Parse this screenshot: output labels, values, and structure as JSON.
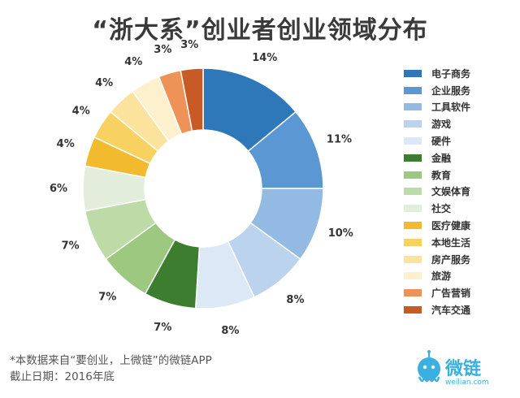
{
  "title": "“浙大系”创业者创业领域分布",
  "chart_data": {
    "type": "pie",
    "donut": true,
    "title": "“浙大系”创业者创业领域分布",
    "legend_position": "right",
    "slices": [
      {
        "label": "电子商务",
        "value": 14,
        "value_label": "14%",
        "color": "#2e78b9"
      },
      {
        "label": "企业服务",
        "value": 11,
        "value_label": "11%",
        "color": "#5a97d3"
      },
      {
        "label": "工具软件",
        "value": 10,
        "value_label": "10%",
        "color": "#93bae3"
      },
      {
        "label": "游戏",
        "value": 8,
        "value_label": "8%",
        "color": "#bcd3ee"
      },
      {
        "label": "硬件",
        "value": 8,
        "value_label": "8%",
        "color": "#dde8f6"
      },
      {
        "label": "金融",
        "value": 7,
        "value_label": "7%",
        "color": "#3c7d2f"
      },
      {
        "label": "教育",
        "value": 7,
        "value_label": "7%",
        "color": "#9cc87f"
      },
      {
        "label": "文娱体育",
        "value": 7,
        "value_label": "7%",
        "color": "#bedaa6"
      },
      {
        "label": "社交",
        "value": 6,
        "value_label": "6%",
        "color": "#e2eedb"
      },
      {
        "label": "医疗健康",
        "value": 4,
        "value_label": "4%",
        "color": "#f2bb2f"
      },
      {
        "label": "本地生活",
        "value": 4,
        "value_label": "4%",
        "color": "#f8d260"
      },
      {
        "label": "房产服务",
        "value": 4,
        "value_label": "4%",
        "color": "#fbe39d"
      },
      {
        "label": "旅游",
        "value": 4,
        "value_label": "4%",
        "color": "#fdf0cc"
      },
      {
        "label": "广告营销",
        "value": 3,
        "value_label": "3%",
        "color": "#ee9257"
      },
      {
        "label": "汽车交通",
        "value": 3,
        "value_label": "3%",
        "color": "#c85a25"
      }
    ]
  },
  "footnote": {
    "line1": "*本数据来自“要创业，上微链”的微链APP",
    "line2": "截止日期：2016年底"
  },
  "logo": {
    "name": "微链",
    "url": "weilian.com",
    "color": "#3ab0e0"
  }
}
